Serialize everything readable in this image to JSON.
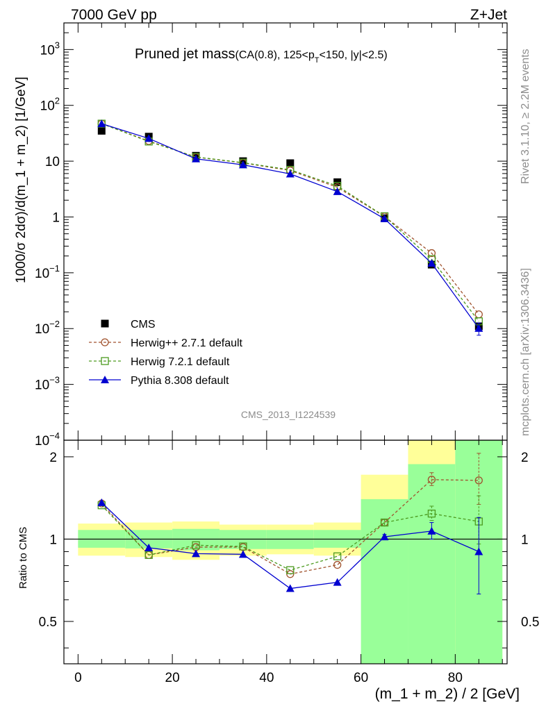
{
  "header": {
    "left": "7000 GeV pp",
    "right": "Z+Jet"
  },
  "title": {
    "main": "Pruned jet mass",
    "sub": "(CA(0.8), 125<p",
    "sub_t": "T",
    "sub_end": "<150, |y|<2.5)"
  },
  "side": {
    "rivet": "Rivet 3.1.10, ≥ 2.2M events",
    "mcplots": "mcplots.cern.ch [arXiv:1306.3436]"
  },
  "analysis_id": "CMS_2013_I1224539",
  "colors": {
    "cms": "#000000",
    "herwigpp": "#a0522d",
    "herwig7": "#4c9a1f",
    "pythia": "#0000d0",
    "band_inner": "#99ff99",
    "band_outer": "#ffff99"
  },
  "chart_data": [
    {
      "type": "scatter",
      "panel": "main",
      "xlabel": "(m_1 + m_2) / 2 [GeV]",
      "ylabel": "1000/σ 2dσ)/d(m_1 + m_2) [1/GeV]",
      "log_y": true,
      "xlim": [
        -3,
        91
      ],
      "ylim": [
        0.0001,
        3000
      ],
      "y_ticks": [
        {
          "value": 0.0001,
          "label": "10",
          "exp": "−4"
        },
        {
          "value": 0.001,
          "label": "10",
          "exp": "−3"
        },
        {
          "value": 0.01,
          "label": "10",
          "exp": "−2"
        },
        {
          "value": 0.1,
          "label": "10",
          "exp": "−1"
        },
        {
          "value": 1,
          "label": "1",
          "exp": ""
        },
        {
          "value": 10,
          "label": "10",
          "exp": ""
        },
        {
          "value": 100,
          "label": "10",
          "exp": "2"
        },
        {
          "value": 1000,
          "label": "10",
          "exp": "3"
        }
      ],
      "x": [
        5,
        15,
        25,
        35,
        45,
        55,
        65,
        75,
        85
      ],
      "series": [
        {
          "name": "CMS",
          "key": "cms",
          "marker": "square",
          "line": "none",
          "values": [
            35,
            27.5,
            12.5,
            10,
            9.2,
            4.2,
            0.95,
            0.14,
            0.011
          ]
        },
        {
          "name": "Herwig++ 2.7.1 default",
          "key": "herwigpp",
          "marker": "open-circle",
          "line": "dashed",
          "values": [
            47,
            23,
            11.8,
            9.3,
            6.8,
            3.4,
            1.02,
            0.225,
            0.018
          ]
        },
        {
          "name": "Herwig 7.2.1 default",
          "key": "herwig7",
          "marker": "open-square",
          "line": "dashed",
          "values": [
            47,
            22.5,
            11.9,
            9.4,
            7.0,
            3.6,
            1.03,
            0.175,
            0.0135
          ]
        },
        {
          "name": "Pythia 8.308 default",
          "key": "pythia",
          "marker": "triangle",
          "line": "solid",
          "values": [
            47,
            25.5,
            11.0,
            8.6,
            5.9,
            2.85,
            0.93,
            0.148,
            0.0101
          ],
          "err_low": [
            0,
            0,
            0,
            0,
            0,
            0,
            0,
            0.012,
            0.0025
          ],
          "err_high": [
            0,
            0,
            0,
            0,
            0,
            0,
            0,
            0.012,
            0.0025
          ]
        }
      ],
      "legend": "lower-left"
    },
    {
      "type": "scatter",
      "panel": "ratio",
      "xlabel": "(m_1 + m_2) / 2 [GeV]",
      "ylabel": "Ratio to CMS",
      "xlim": [
        -3,
        91
      ],
      "ylim": [
        0.35,
        2.3
      ],
      "x_ticks": [
        0,
        20,
        40,
        60,
        80
      ],
      "y_ticks": [
        0.5,
        1,
        2
      ],
      "bins": [
        [
          0,
          10
        ],
        [
          10,
          20
        ],
        [
          20,
          30
        ],
        [
          30,
          40
        ],
        [
          40,
          50
        ],
        [
          50,
          60
        ],
        [
          60,
          70
        ],
        [
          70,
          80
        ],
        [
          80,
          90
        ]
      ],
      "band_inner": [
        [
          0.93,
          1.08
        ],
        [
          0.925,
          1.08
        ],
        [
          0.91,
          1.09
        ],
        [
          0.92,
          1.08
        ],
        [
          0.92,
          1.08
        ],
        [
          0.93,
          1.08
        ],
        [
          0.35,
          1.4
        ],
        [
          0.35,
          1.88
        ],
        [
          0.35,
          2.3
        ]
      ],
      "band_outer": [
        [
          0.87,
          1.14
        ],
        [
          0.86,
          1.15
        ],
        [
          0.84,
          1.16
        ],
        [
          0.87,
          1.13
        ],
        [
          0.88,
          1.13
        ],
        [
          0.87,
          1.15
        ],
        [
          0.71,
          1.72
        ],
        [
          0.35,
          2.3
        ],
        [
          0.35,
          2.3
        ]
      ],
      "x": [
        5,
        15,
        25,
        35,
        45,
        55,
        65,
        75,
        85
      ],
      "series": [
        {
          "name": "Herwig++ 2.7.1 default",
          "key": "herwigpp",
          "marker": "open-circle",
          "line": "dashed",
          "values": [
            1.35,
            0.875,
            0.935,
            0.935,
            0.745,
            0.805,
            1.15,
            1.65,
            1.64
          ],
          "err_low": [
            0,
            0,
            0,
            0,
            0,
            0,
            0.03,
            0.08,
            0.3
          ],
          "err_high": [
            0,
            0,
            0,
            0,
            0,
            0,
            0.03,
            0.1,
            0.42
          ]
        },
        {
          "name": "Herwig 7.2.1 default",
          "key": "herwig7",
          "marker": "open-square",
          "line": "dashed",
          "values": [
            1.33,
            0.875,
            0.95,
            0.94,
            0.77,
            0.865,
            1.15,
            1.24,
            1.16
          ],
          "err_low": [
            0,
            0,
            0,
            0,
            0,
            0,
            0.03,
            0.07,
            0.2
          ],
          "err_high": [
            0,
            0,
            0,
            0,
            0,
            0,
            0.03,
            0.08,
            0.28
          ]
        },
        {
          "name": "Pythia 8.308 default",
          "key": "pythia",
          "marker": "triangle",
          "line": "solid",
          "values": [
            1.36,
            0.93,
            0.885,
            0.88,
            0.66,
            0.695,
            1.02,
            1.07,
            0.9
          ],
          "err_low": [
            0,
            0,
            0,
            0,
            0,
            0,
            0.02,
            0.07,
            0.27
          ],
          "err_high": [
            0,
            0,
            0,
            0,
            0,
            0,
            0.02,
            0.08,
            0.3
          ]
        }
      ]
    }
  ]
}
